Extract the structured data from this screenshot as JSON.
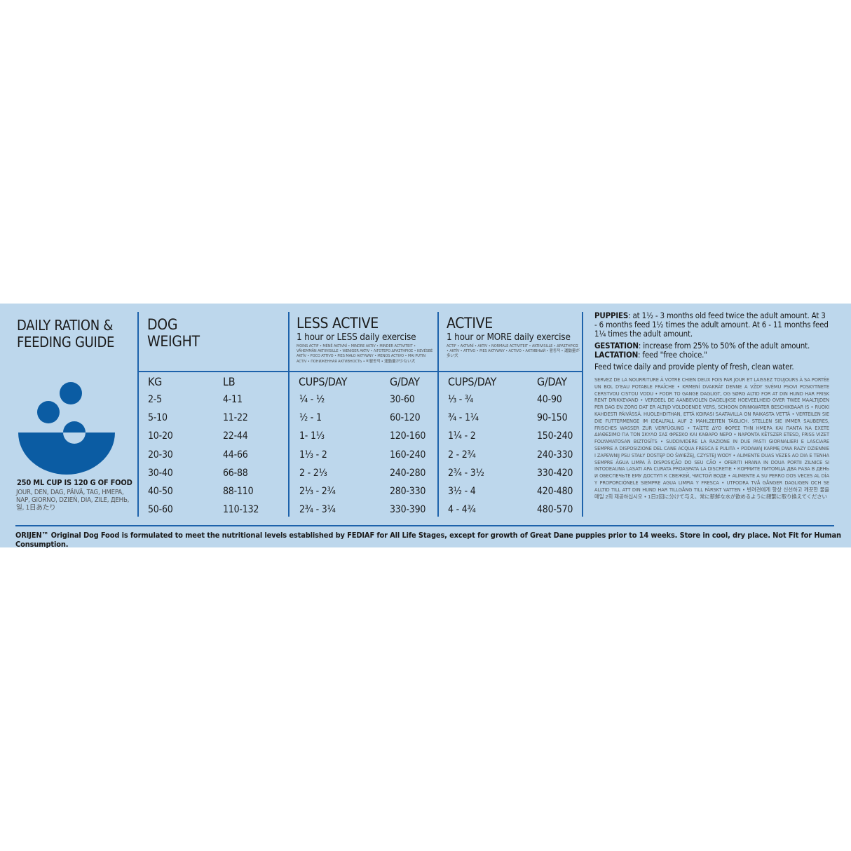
{
  "title": "DAILY RATION & FEEDING GUIDE",
  "title_lines": [
    "DAILY RATION &",
    "FEEDING GUIDE"
  ],
  "cup_note": "250 ML CUP IS 120 G OF FOOD",
  "day_translations": "JOUR, DEN, DAG, PÄIVÄ, TAG, HMEPA, NAP, GIORNO, DZIEŃ, DIA, ZILE, ДЕНЬ, 일, 1日あたり",
  "icon": "food-bowl-icon",
  "colors": {
    "background": "#bdd7ec",
    "accent": "#1d62ab",
    "bowl": "#0b5ca3"
  },
  "dog_weight": {
    "heading_lines": [
      "DOG",
      "WEIGHT"
    ],
    "col_kg": "KG",
    "col_lb": "LB"
  },
  "less_active": {
    "heading": "LESS ACTIVE",
    "subheading": "1 hour or LESS daily exercise",
    "translations": "MOINS ACTIF • MÉNĚ AKTIVNÍ • MINDRE AKTIV • MINDER ACTIVITEIT • VÄHEMMÄN AKTIIVISILLE • WENIGER AKTIV • ΛΙΓΟΤΕΡΟ ΔΡΑΣΤΗΡΙΟΣ • KEVÉSBÉ AKTÍV • POCO ATTIVO • PIES MAŁO AKTYWNY • MENOS ACTIVO • MAI PUTIN ACTIV • ПОНИЖЕННАЯ АКТИВНОСТЬ • 비활동적 • 運動量が少ない犬",
    "col_cups": "CUPS/DAY",
    "col_g": "G/DAY"
  },
  "active": {
    "heading": "ACTIVE",
    "subheading": "1 hour or MORE daily exercise",
    "translations": "ACTIF • AKTIVNÍ • AKTIV • NORMALE ACTIVITEIT • AKTIIVISILLE • ΔΡΑΣΤΗΡΙΟΣ • AKTÍV • ATTIVO • PIES AKTYWNY • ACTIVO • АКТИВНЫЙ • 활동적 • 運動量が多い犬",
    "col_cups": "CUPS/DAY",
    "col_g": "G/DAY"
  },
  "rows": [
    {
      "kg": "2-5",
      "lb": "4-11",
      "less_cups": "¼ - ½",
      "less_g": "30-60",
      "active_cups": "⅓ - ¾",
      "active_g": "40-90"
    },
    {
      "kg": "5-10",
      "lb": "11-22",
      "less_cups": "½ - 1",
      "less_g": "60-120",
      "active_cups": "¾ - 1¼",
      "active_g": "90-150"
    },
    {
      "kg": "10-20",
      "lb": "22-44",
      "less_cups": "1- 1⅓",
      "less_g": "120-160",
      "active_cups": "1¼ - 2",
      "active_g": "150-240"
    },
    {
      "kg": "20-30",
      "lb": "44-66",
      "less_cups": "1⅓ - 2",
      "less_g": "160-240",
      "active_cups": "2 - 2¾",
      "active_g": "240-330"
    },
    {
      "kg": "30-40",
      "lb": "66-88",
      "less_cups": "2 - 2⅓",
      "less_g": "240-280",
      "active_cups": "2¾ - 3½",
      "active_g": "330-420"
    },
    {
      "kg": "40-50",
      "lb": "88-110",
      "less_cups": "2⅓ - 2¾",
      "less_g": "280-330",
      "active_cups": "3½ - 4",
      "active_g": "420-480"
    },
    {
      "kg": "50-60",
      "lb": "110-132",
      "less_cups": "2¾ - 3¼",
      "less_g": "330-390",
      "active_cups": "4 - 4¾",
      "active_g": "480-570"
    }
  ],
  "notes": {
    "puppies_label": "PUPPIES",
    "puppies_text": ": at 1½ - 3 months old feed twice the adult amount. At  3 - 6 months feed 1½ times the adult amount. At 6 - 11 months feed 1¼ times the adult amount.",
    "gestation_label": "GESTATION",
    "gestation_text": ": increase from 25% to 50% of the adult amount.",
    "lactation_label": "LACTATION",
    "lactation_text": ": feed \"free choice.\"",
    "feed_twice": "Feed twice daily and provide plenty of fresh, clean water.",
    "translations": "SERVEZ DE LA NOURRITURE À VOTRE CHIEN DEUX FOIS PAR JOUR ET LAISSEZ TOUJOURS À SA PORTÉE UN BOL D'EAU POTABLE FRAÎCHE • KRMENÍ DVAKRÁT DENNE A VŽDY SVÉMU PSOVI POSKYTNETE CERSTVOU CISTOU VODU • FODR TO GANGE DAGLIGT, OG SØRG ALTID FOR AT DIN HUND HAR FRISK RENT DRIKKEVAND • VERDEEL DE AANBEVOLEN DAGELIJKSE HOEVEELHEID OVER TWEE MAALTIJDEN PER DAG EN ZORG DAT ER ALTIJD VOLDOENDE VERS, SCHOON DRINKWATER BESCHIKBAAR IS • RUOKI KAHDESTI PÄIVÄSSÄ. HUOLEHDITHAN, ETTÄ KOIRASI SAATAVILLA ON RAIKASTA VETTÄ • VERTEILEN SIE DIE FUTTERMENGE IM IDEALFALL AUF 2 MAHLZEITEN TÄGLICH. STELLEN SIE IMMER SAUBERES, FRISCHES WASSER ZUR VERFÜGUNG • ΤΑΪΣΤΕ ΔΥΟ ΦΟΡΕΣ ΤΗΝ ΗΜΕΡΑ ΚΑΙ ΠΑΝΤΑ ΝΑ ΕΧΕΤΕ ΔΙΑΘΕΣΙΜΟ ΓΙΑ ΤΟΝ ΣΚΥΛΟ ΣΑΣ ΦΡΕΣΚΟ ΚΑΙ ΚΑΘΑΡΟ ΝΕΡΟ • NAPONTA KÉTSZER ETESD, FRISS VIZET FOLYAMATOSAN BIZTOSÍTS • SUDDIVIDERE LA RAZIONE IN DUE PASTI GIORNALIERI E LASCIARE SEMPRE A DISPOSIZIONE DEL CANE ACQUA FRESCA E PULITA • PODAWAJ KARMĘ DWA RAZY DZIENNIE I ZAPEWNIJ PSU STAŁY DOSTĘP DO ŚWIEŻEJ, CZYSTEJ WODY • ALIMENTE DUAS VEZES AO DIA E TENHA SEMPRE ÁGUA LIMPA À DISPOSIÇÃO DO SEU CÃO • OFERITI HRANA IN DOUA PORTII ZILNICE SI INTODEAUNA LASATI APA CURATA PROASPATA LA DISCRETIE • КОРМИТЕ ПИТОМЦА ДВА РАЗА В ДЕНЬ И ОБЕСПЕЧЬТЕ ЕМУ ДОСТУП К СВЕЖЕЙ, ЧИСТОЙ ВОДЕ • ALIMENTE A SU PERRO DOS VECES AL DÍA Y PROPORCIÓNELE SIEMPRE AGUA LIMPIA Y FRESCA • UTFODRA TVÅ GÅNGER DAGLIGEN OCH SE ALLTID TILL ATT DIN HUND HAR TILLGÅNG TILL FÄRSKT VATTEN • 반려견에게 항상 신선하고 깨끗한 물을 매일 2회 제공하십시오 • 1日2回に分けて与え、常に新鮮な水が飲めるように頻繁に取り換えてください"
  },
  "footer": "ORIJEN™ Original Dog Food is formulated to meet the nutritional levels established by FEDIAF for All Life Stages, except for growth of Great Dane puppies prior to 14 weeks. Store in cool, dry place. Not Fit for Human Consumption."
}
